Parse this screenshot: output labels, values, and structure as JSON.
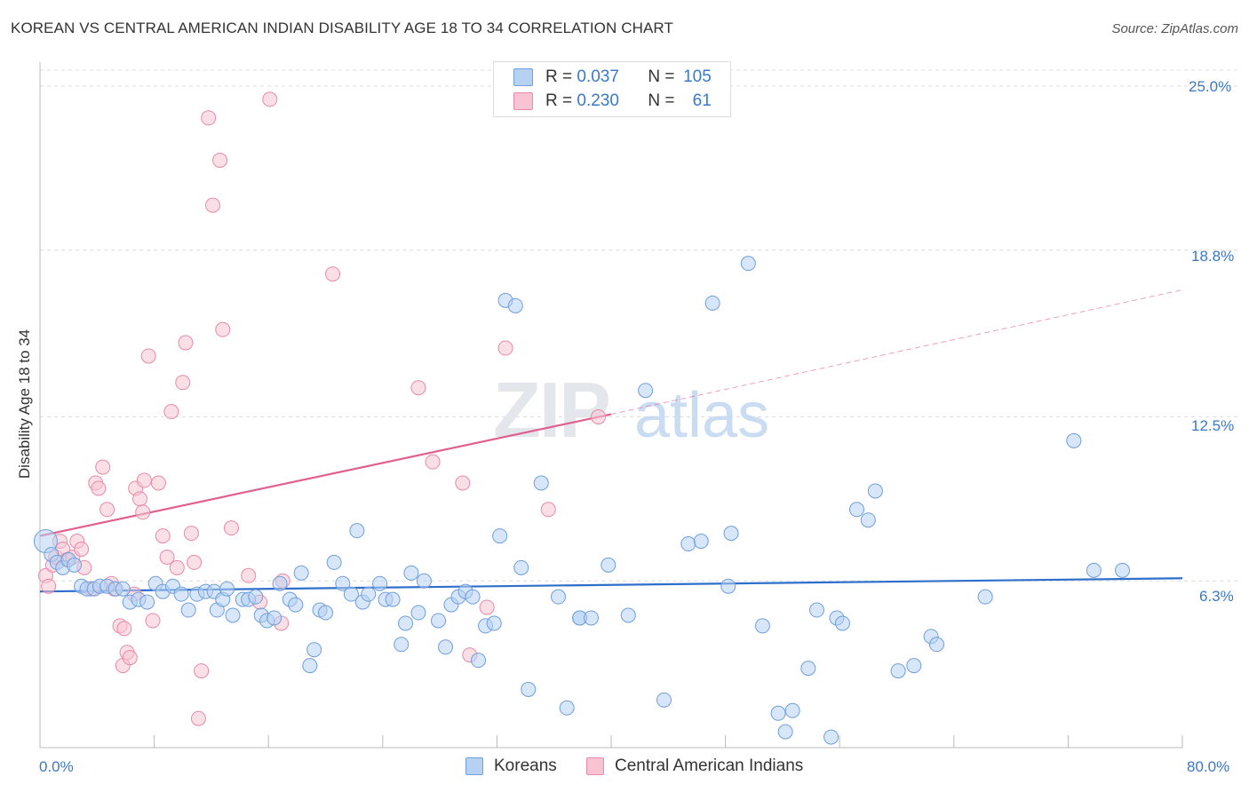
{
  "title": "KOREAN VS CENTRAL AMERICAN INDIAN DISABILITY AGE 18 TO 34 CORRELATION CHART",
  "source": "Source: ZipAtlas.com",
  "watermark": {
    "zip": "ZIP",
    "atlas": "atlas"
  },
  "legend": {
    "rows": [
      {
        "r_label": "R =",
        "r_value": "0.037",
        "n_label": "N =",
        "n_value": "105",
        "color": "#6f9fdc"
      },
      {
        "r_label": "R =",
        "r_value": "0.230",
        "n_label": "N =",
        "n_value": "61",
        "color": "#e88aa8"
      }
    ]
  },
  "bottom_legend": {
    "series1": "Koreans",
    "series2": "Central American Indians"
  },
  "chart_data": {
    "type": "scatter",
    "ylabel": "Disability Age 18 to 34",
    "xlim": [
      0,
      80
    ],
    "ylim": [
      0,
      25.5
    ],
    "x_tick_labels": [
      "0.0%",
      "80.0%"
    ],
    "y_ticks": [
      6.3,
      12.5,
      18.8,
      25.0
    ],
    "y_tick_labels": [
      "6.3%",
      "12.5%",
      "18.8%",
      "25.0%"
    ],
    "grid": "horizontal dashed",
    "colors": {
      "koreans": "#6f9fdc",
      "koreans_fill": "#b7d1f3",
      "cai": "#e88aa8",
      "cai_fill": "#f8c4d4",
      "koreans_line": "#2e6fcc",
      "cai_line": "#e06090"
    },
    "series": [
      {
        "name": "Koreans",
        "trend": {
          "x": [
            0,
            80
          ],
          "y": [
            5.9,
            6.4
          ]
        },
        "points": [
          [
            0.4,
            7.8
          ],
          [
            0.8,
            7.3
          ],
          [
            1.2,
            7.0
          ],
          [
            1.6,
            6.8
          ],
          [
            2.0,
            7.1
          ],
          [
            2.4,
            6.9
          ],
          [
            2.9,
            6.1
          ],
          [
            3.3,
            6.0
          ],
          [
            3.8,
            6.0
          ],
          [
            4.2,
            6.1
          ],
          [
            4.7,
            6.1
          ],
          [
            5.3,
            6.0
          ],
          [
            5.8,
            6.0
          ],
          [
            6.3,
            5.5
          ],
          [
            6.9,
            5.6
          ],
          [
            7.5,
            5.5
          ],
          [
            8.1,
            6.2
          ],
          [
            8.6,
            5.9
          ],
          [
            9.3,
            6.1
          ],
          [
            9.9,
            5.8
          ],
          [
            10.4,
            5.2
          ],
          [
            11.0,
            5.8
          ],
          [
            11.6,
            5.9
          ],
          [
            12.2,
            5.9
          ],
          [
            12.4,
            5.2
          ],
          [
            12.8,
            5.6
          ],
          [
            13.1,
            6.0
          ],
          [
            13.5,
            5.0
          ],
          [
            14.2,
            5.6
          ],
          [
            14.6,
            5.6
          ],
          [
            15.1,
            5.7
          ],
          [
            15.5,
            5.0
          ],
          [
            15.9,
            4.8
          ],
          [
            16.4,
            4.9
          ],
          [
            16.8,
            6.2
          ],
          [
            17.5,
            5.6
          ],
          [
            17.9,
            5.4
          ],
          [
            18.3,
            6.6
          ],
          [
            18.9,
            3.1
          ],
          [
            19.2,
            3.7
          ],
          [
            19.6,
            5.2
          ],
          [
            20.0,
            5.1
          ],
          [
            20.6,
            7.0
          ],
          [
            21.2,
            6.2
          ],
          [
            21.8,
            5.8
          ],
          [
            22.2,
            8.2
          ],
          [
            22.6,
            5.5
          ],
          [
            23.0,
            5.8
          ],
          [
            23.8,
            6.2
          ],
          [
            24.2,
            5.6
          ],
          [
            24.7,
            5.6
          ],
          [
            25.3,
            3.9
          ],
          [
            25.6,
            4.7
          ],
          [
            26.0,
            6.6
          ],
          [
            26.5,
            5.1
          ],
          [
            26.9,
            6.3
          ],
          [
            27.9,
            4.8
          ],
          [
            28.4,
            3.8
          ],
          [
            28.8,
            5.4
          ],
          [
            29.3,
            5.7
          ],
          [
            29.8,
            5.9
          ],
          [
            30.3,
            5.7
          ],
          [
            30.7,
            3.3
          ],
          [
            31.2,
            4.6
          ],
          [
            31.8,
            4.7
          ],
          [
            32.2,
            8.0
          ],
          [
            32.6,
            16.9
          ],
          [
            33.3,
            16.7
          ],
          [
            33.7,
            6.8
          ],
          [
            34.2,
            2.2
          ],
          [
            35.1,
            10.0
          ],
          [
            36.3,
            5.7
          ],
          [
            36.9,
            1.5
          ],
          [
            37.8,
            4.9
          ],
          [
            37.8,
            4.9
          ],
          [
            38.6,
            4.9
          ],
          [
            39.8,
            6.9
          ],
          [
            41.2,
            5.0
          ],
          [
            42.4,
            13.5
          ],
          [
            43.7,
            1.8
          ],
          [
            45.4,
            7.7
          ],
          [
            46.3,
            7.8
          ],
          [
            47.1,
            16.8
          ],
          [
            48.2,
            6.1
          ],
          [
            48.4,
            8.1
          ],
          [
            49.6,
            18.3
          ],
          [
            50.6,
            4.6
          ],
          [
            51.7,
            1.3
          ],
          [
            52.2,
            0.6
          ],
          [
            52.7,
            1.4
          ],
          [
            53.8,
            3.0
          ],
          [
            54.4,
            5.2
          ],
          [
            55.4,
            0.4
          ],
          [
            55.8,
            4.9
          ],
          [
            56.2,
            4.7
          ],
          [
            57.2,
            9.0
          ],
          [
            58.0,
            8.6
          ],
          [
            58.5,
            9.7
          ],
          [
            60.1,
            2.9
          ],
          [
            61.2,
            3.1
          ],
          [
            62.4,
            4.2
          ],
          [
            62.8,
            3.9
          ],
          [
            66.2,
            5.7
          ],
          [
            72.4,
            11.6
          ],
          [
            73.8,
            6.7
          ],
          [
            75.8,
            6.7
          ]
        ]
      },
      {
        "name": "Central American Indians",
        "trend": {
          "x": [
            0,
            40
          ],
          "y": [
            8.0,
            12.6
          ]
        },
        "trend_ext": {
          "x": [
            40,
            80
          ],
          "y": [
            12.6,
            17.3
          ]
        },
        "points": [
          [
            0.4,
            6.5
          ],
          [
            0.6,
            6.1
          ],
          [
            0.9,
            6.9
          ],
          [
            1.1,
            7.2
          ],
          [
            1.4,
            7.8
          ],
          [
            1.6,
            7.5
          ],
          [
            1.9,
            7.1
          ],
          [
            2.3,
            7.2
          ],
          [
            2.6,
            7.8
          ],
          [
            2.9,
            7.5
          ],
          [
            3.1,
            6.8
          ],
          [
            3.6,
            6.0
          ],
          [
            3.9,
            10.0
          ],
          [
            4.1,
            9.8
          ],
          [
            4.4,
            10.6
          ],
          [
            4.7,
            9.0
          ],
          [
            5.0,
            6.2
          ],
          [
            5.2,
            6.0
          ],
          [
            5.6,
            4.6
          ],
          [
            5.9,
            4.5
          ],
          [
            6.1,
            3.6
          ],
          [
            5.8,
            3.1
          ],
          [
            6.3,
            3.4
          ],
          [
            6.6,
            5.8
          ],
          [
            6.7,
            9.8
          ],
          [
            7.0,
            9.4
          ],
          [
            7.2,
            8.9
          ],
          [
            7.3,
            10.1
          ],
          [
            7.6,
            14.8
          ],
          [
            7.9,
            4.8
          ],
          [
            8.3,
            10.0
          ],
          [
            8.6,
            8.0
          ],
          [
            8.9,
            7.2
          ],
          [
            9.2,
            12.7
          ],
          [
            9.6,
            6.8
          ],
          [
            10.0,
            13.8
          ],
          [
            10.2,
            15.3
          ],
          [
            10.6,
            8.1
          ],
          [
            10.8,
            7.0
          ],
          [
            11.1,
            1.1
          ],
          [
            11.3,
            2.9
          ],
          [
            11.8,
            23.8
          ],
          [
            12.1,
            20.5
          ],
          [
            12.6,
            22.2
          ],
          [
            12.8,
            15.8
          ],
          [
            13.4,
            8.3
          ],
          [
            14.6,
            6.5
          ],
          [
            15.4,
            5.5
          ],
          [
            16.1,
            24.5
          ],
          [
            16.9,
            4.7
          ],
          [
            17.0,
            6.3
          ],
          [
            20.5,
            17.9
          ],
          [
            26.5,
            13.6
          ],
          [
            27.5,
            10.8
          ],
          [
            29.6,
            10.0
          ],
          [
            30.1,
            3.5
          ],
          [
            31.3,
            5.3
          ],
          [
            32.6,
            15.1
          ],
          [
            35.6,
            9.0
          ],
          [
            39.1,
            12.5
          ]
        ]
      }
    ]
  }
}
